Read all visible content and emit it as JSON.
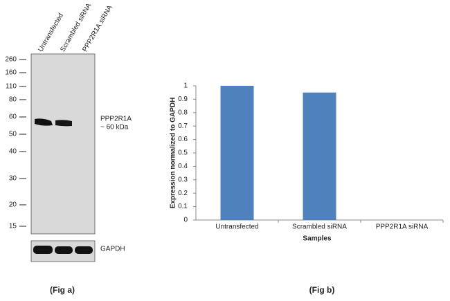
{
  "figure_a": {
    "lanes": [
      "Untransfected",
      "Scrambled siRNA",
      "PPP2R1A siRNA"
    ],
    "markers": [
      260,
      160,
      110,
      80,
      60,
      50,
      40,
      30,
      20,
      15
    ],
    "band_label": "PPP2R1A",
    "band_size": "~ 60 kDa",
    "loading_label": "GAPDH",
    "caption": "(Fig a)"
  },
  "chart_data": {
    "type": "bar",
    "caption": "(Fig b)",
    "y_label": "Expression  normalized to GAPDH",
    "x_label": "Samples",
    "categories": [
      "Untransfected",
      "Scrambled siRNA",
      "PPP2R1A siRNA"
    ],
    "values": [
      1,
      0.95,
      0
    ],
    "color": "#4f81bd",
    "ylim": [
      0,
      1
    ],
    "yticks": [
      0,
      0.1,
      0.2,
      0.3,
      0.4,
      0.5,
      0.6,
      0.7,
      0.8,
      0.9,
      1
    ],
    "grid": false
  }
}
